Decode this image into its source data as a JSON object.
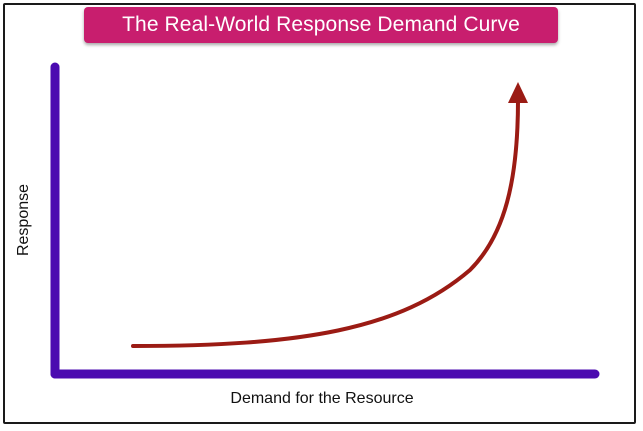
{
  "title": "The Real-World Response Demand Curve",
  "axes": {
    "y_label": "Response",
    "x_label": "Demand for the Resource"
  },
  "colors": {
    "title_background": "#c81e6e",
    "axis": "#4b0bb0",
    "curve": "#9b1b14",
    "frame": "#1a1a1a"
  },
  "curve": {
    "shape": "exponential growth",
    "arrowhead": "end"
  }
}
